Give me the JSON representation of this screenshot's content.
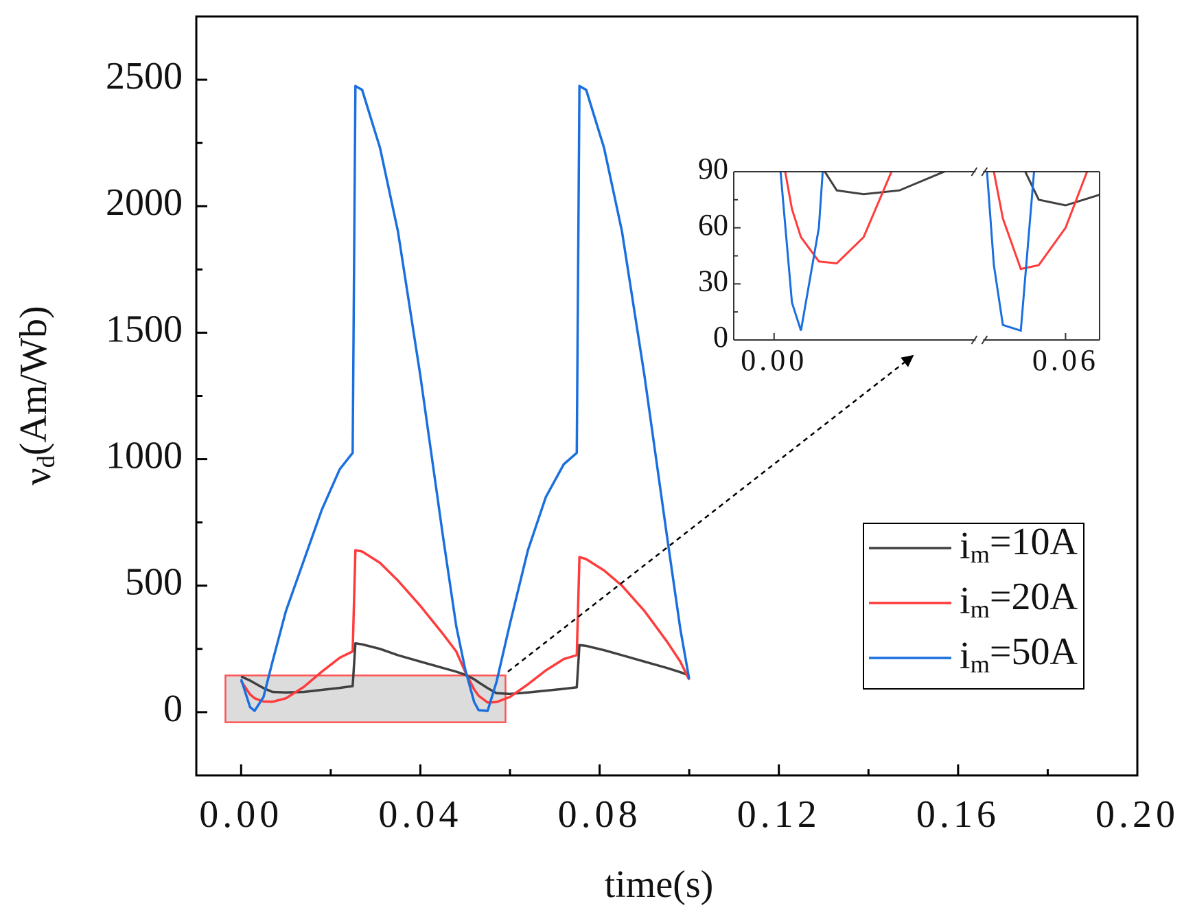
{
  "chart_data": [
    {
      "type": "line",
      "x_label": "time(s)",
      "y_label": "νd(Am/Wb)",
      "xlim": [
        -0.01,
        0.2
      ],
      "ylim": [
        -250,
        2750
      ],
      "xticks": [
        {
          "value": 0,
          "label": "0.00"
        },
        {
          "value": 0.04,
          "label": "0.04"
        },
        {
          "value": 0.08,
          "label": "0.08"
        },
        {
          "value": 0.12,
          "label": "0.12"
        },
        {
          "value": 0.16,
          "label": "0.16"
        },
        {
          "value": 0.2,
          "label": "0.20"
        }
      ],
      "minor_xticks": [
        0.02,
        0.06,
        0.1,
        0.14,
        0.18
      ],
      "yticks": [
        0,
        500,
        1000,
        1500,
        2000,
        2500
      ],
      "minor_yticks": [
        250,
        750,
        1250,
        1750,
        2250
      ],
      "zoom_box": {
        "x": [
          -0.0035,
          0.059
        ],
        "y": [
          -40,
          145
        ]
      },
      "legend": "lower right",
      "x": [
        0,
        0.002,
        0.003,
        0.005,
        0.007,
        0.01,
        0.014,
        0.018,
        0.022,
        0.0249,
        0.0255,
        0.027,
        0.031,
        0.035,
        0.04,
        0.045,
        0.048,
        0.05,
        0.052,
        0.053,
        0.055,
        0.057,
        0.06,
        0.064,
        0.068,
        0.072,
        0.0749,
        0.0755,
        0.077,
        0.081,
        0.085,
        0.09,
        0.095,
        0.098,
        0.1
      ],
      "series": [
        {
          "name": "im=10A",
          "color": "#404040",
          "values": [
            141,
            125,
            115,
            95,
            80,
            78,
            80,
            88,
            96,
            103,
            272,
            268,
            250,
            225,
            200,
            175,
            160,
            148,
            130,
            118,
            95,
            75,
            72,
            78,
            85,
            92,
            98,
            265,
            262,
            245,
            225,
            200,
            175,
            158,
            145
          ]
        },
        {
          "name": "im=20A",
          "color": "#ff3b3b",
          "values": [
            123,
            70,
            55,
            42,
            41,
            55,
            100,
            160,
            215,
            240,
            640,
            635,
            590,
            520,
            420,
            310,
            240,
            160,
            90,
            65,
            38,
            40,
            60,
            110,
            165,
            210,
            225,
            613,
            605,
            560,
            500,
            400,
            280,
            200,
            128
          ]
        },
        {
          "name": "im=50A",
          "color": "#1a6fdf",
          "values": [
            130,
            20,
            5,
            60,
            200,
            400,
            600,
            800,
            960,
            1025,
            2475,
            2460,
            2230,
            1900,
            1330,
            700,
            340,
            170,
            40,
            8,
            5,
            120,
            350,
            640,
            850,
            980,
            1025,
            2475,
            2460,
            2230,
            1900,
            1330,
            700,
            330,
            130
          ]
        }
      ]
    },
    {
      "type": "inset",
      "x_segments": [
        [
          -0.0045,
          0.0225
        ],
        [
          0.0508,
          0.0638
        ]
      ],
      "xticks": [
        {
          "value": 0,
          "label": "0.00"
        },
        {
          "value": 0.06,
          "label": "0.06"
        }
      ],
      "ylim": [
        0,
        90
      ],
      "yticks": [
        0,
        30,
        60,
        90
      ],
      "minor_yticks": [
        15,
        45,
        75
      ]
    }
  ]
}
